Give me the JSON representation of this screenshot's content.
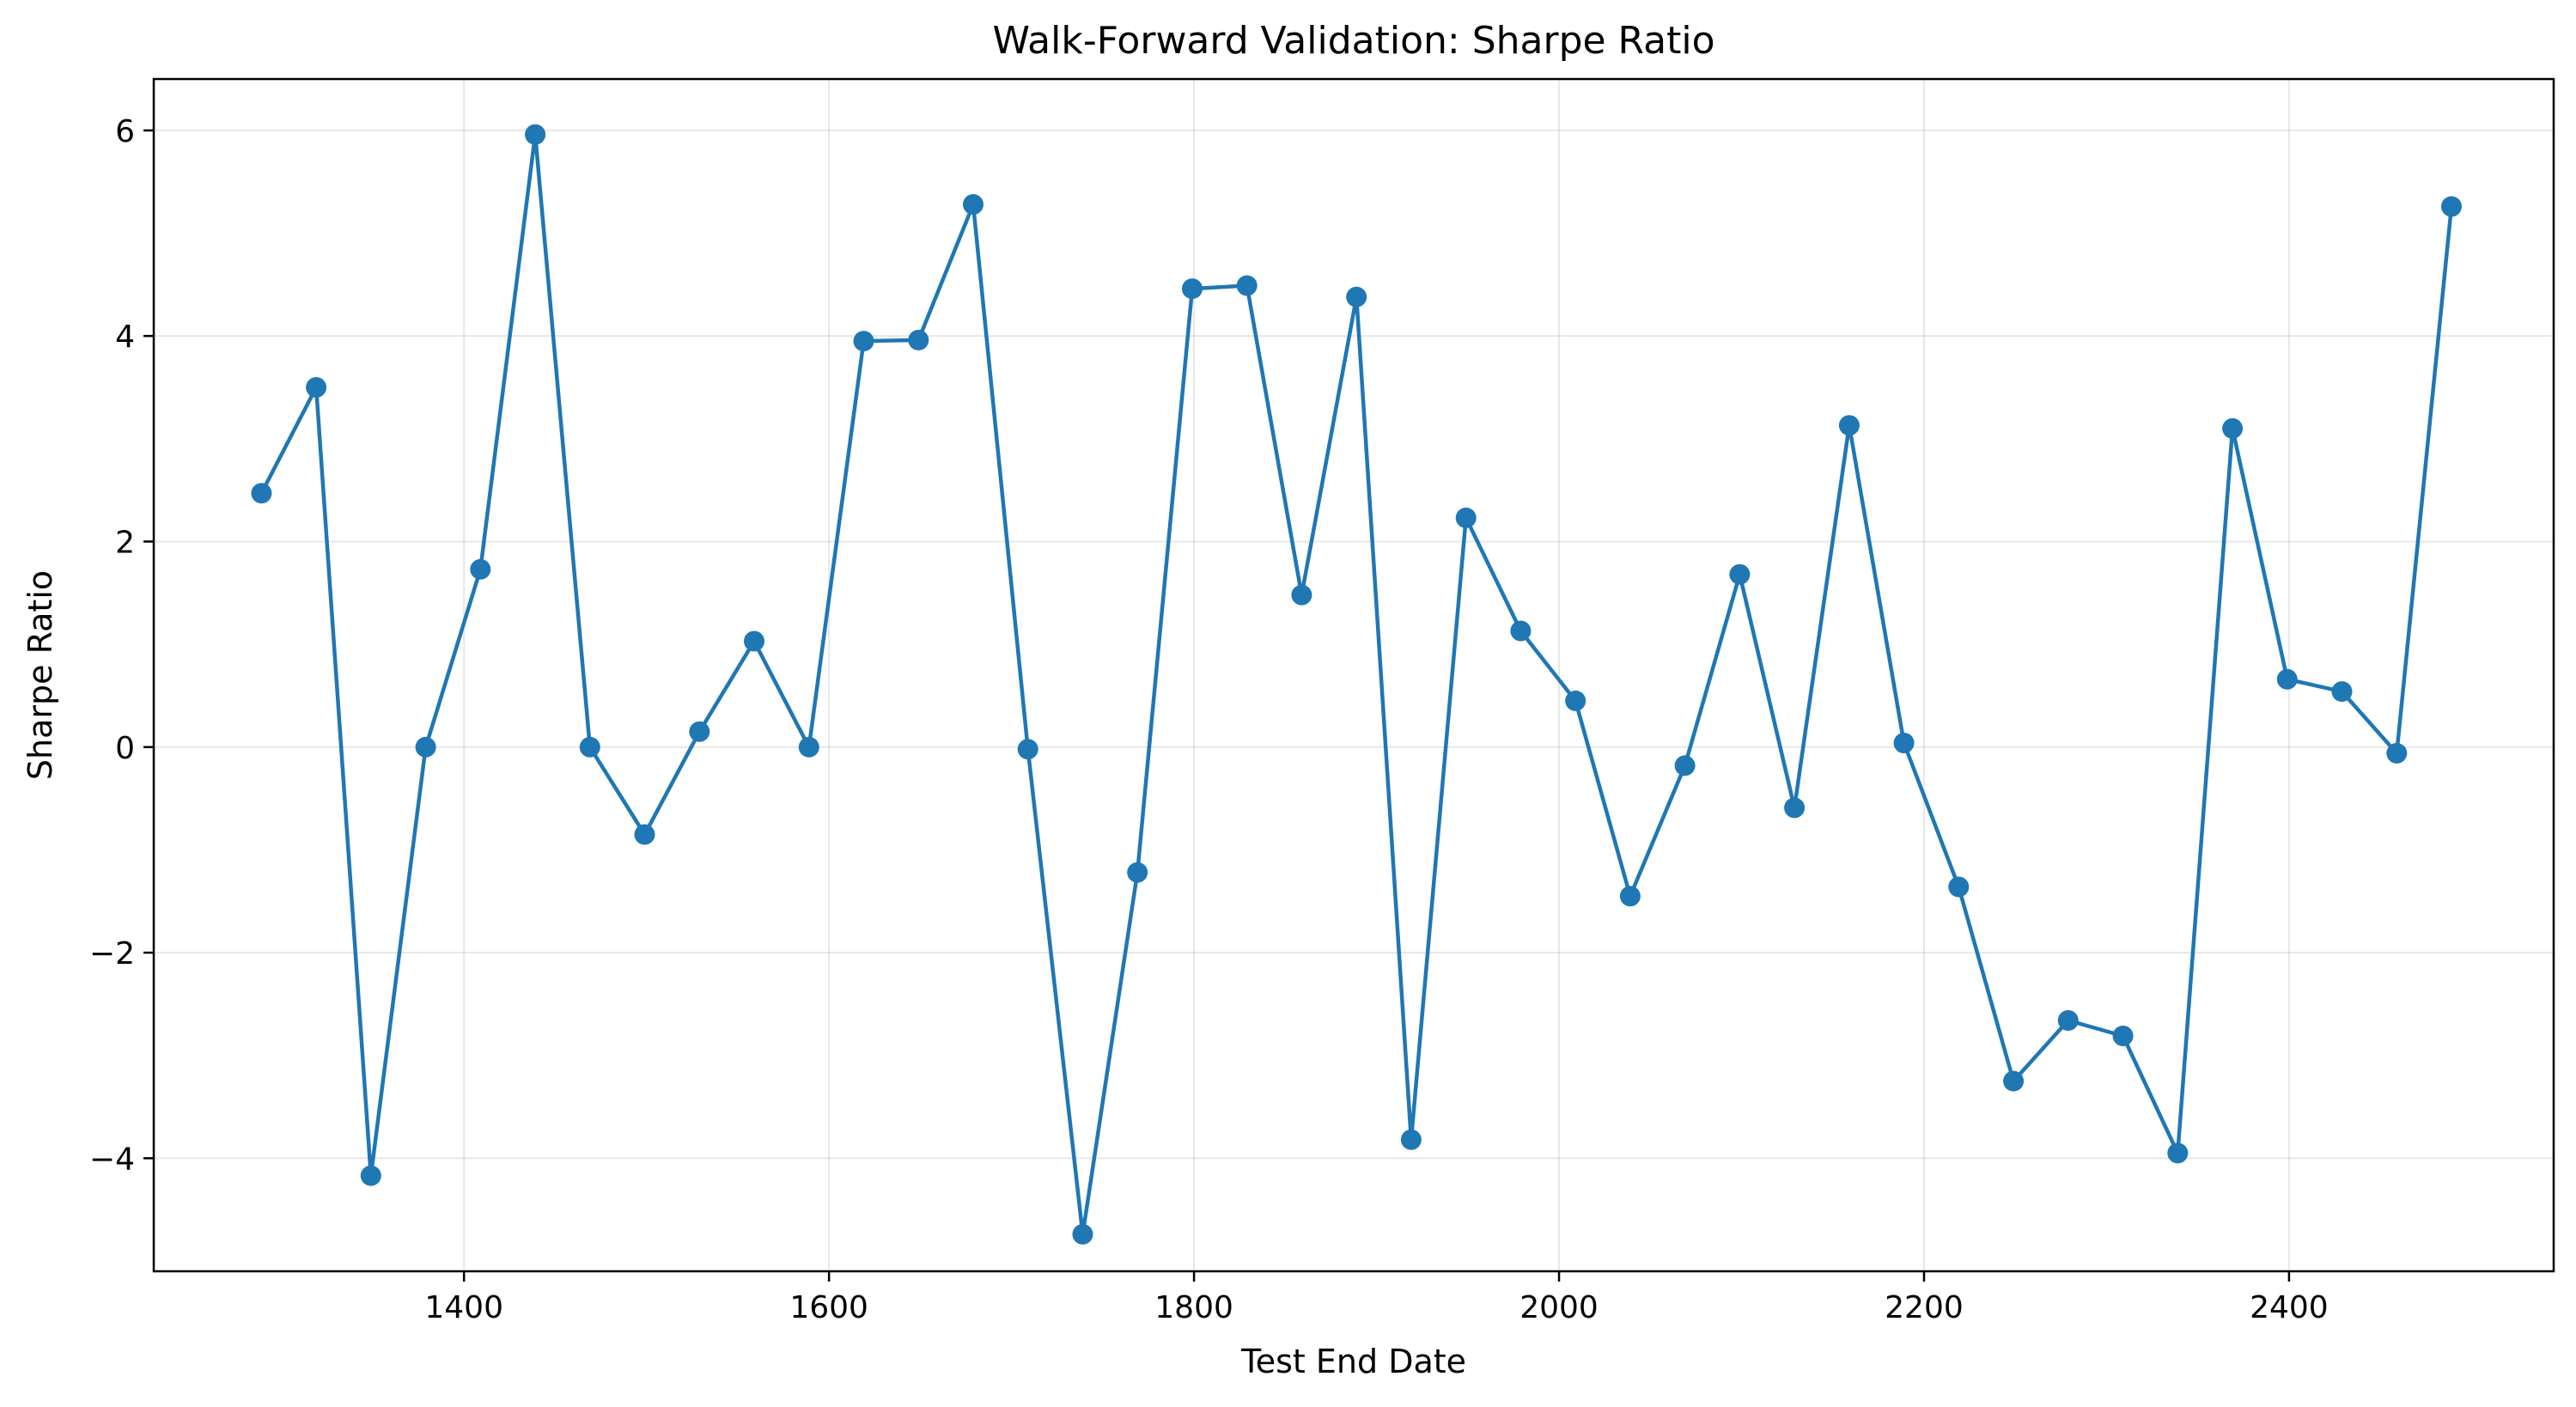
{
  "chart_data": {
    "type": "line",
    "title": "Walk-Forward Validation: Sharpe Ratio",
    "xlabel": "Test End Date",
    "ylabel": "Sharpe Ratio",
    "xlim": [
      1230,
      2545
    ],
    "ylim": [
      -5.1,
      6.5
    ],
    "x_ticks": [
      1400,
      1600,
      1800,
      2000,
      2200,
      2400
    ],
    "y_ticks": [
      -4,
      -2,
      0,
      2,
      4,
      6
    ],
    "grid": true,
    "legend": "none",
    "color": "#1f77b4",
    "marker": "circle",
    "series": [
      {
        "x": [
          1289,
          1319,
          1349,
          1379,
          1409,
          1439,
          1469,
          1499,
          1529,
          1559,
          1589,
          1619,
          1649,
          1679,
          1709,
          1739,
          1769,
          1799,
          1829,
          1859,
          1889,
          1919,
          1949,
          1979,
          2009,
          2039,
          2069,
          2099,
          2129,
          2159,
          2189,
          2219,
          2249,
          2279,
          2309,
          2339,
          2369,
          2399,
          2429,
          2459,
          2489
        ],
        "values": [
          2.47,
          3.5,
          -4.17,
          0.0,
          1.73,
          5.96,
          0.0,
          -0.85,
          0.15,
          1.03,
          0.0,
          3.95,
          3.96,
          5.28,
          -0.02,
          -4.74,
          -1.22,
          4.46,
          4.49,
          1.48,
          4.38,
          -3.82,
          2.23,
          1.13,
          0.45,
          -1.45,
          -0.18,
          1.68,
          -0.59,
          3.13,
          0.04,
          -1.36,
          -3.25,
          -2.66,
          -2.81,
          -3.95,
          3.1,
          0.66,
          0.54,
          -0.06,
          5.26
        ]
      }
    ]
  }
}
